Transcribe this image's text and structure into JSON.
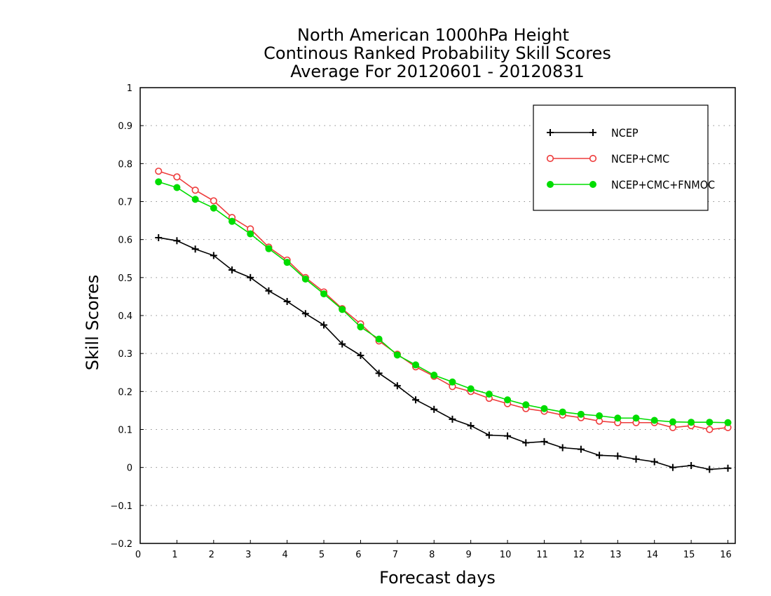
{
  "chart_data": {
    "type": "line",
    "title": [
      "North American 1000hPa Height",
      "Continous Ranked Probability Skill Scores",
      "Average For 20120601 - 20120831"
    ],
    "xlabel": "Forecast days",
    "ylabel": "Skill Scores",
    "xlim": [
      0,
      16.2
    ],
    "ylim": [
      -0.2,
      1
    ],
    "xticks": [
      0,
      1,
      2,
      3,
      4,
      5,
      6,
      7,
      8,
      9,
      10,
      11,
      12,
      13,
      14,
      15,
      16
    ],
    "yticks": [
      -0.2,
      -0.1,
      0,
      0.1,
      0.2,
      0.3,
      0.4,
      0.5,
      0.6,
      0.7,
      0.8,
      0.9,
      1
    ],
    "ytick_labels": [
      "−0.2",
      "−0.1",
      "0",
      "0.1",
      "0.2",
      "0.3",
      "0.4",
      "0.5",
      "0.6",
      "0.7",
      "0.8",
      "0.9",
      "1"
    ],
    "grid": "horizontal dotted",
    "legend_position": "top-right",
    "x": [
      0.5,
      1,
      1.5,
      2,
      2.5,
      3,
      3.5,
      4,
      4.5,
      5,
      5.5,
      6,
      6.5,
      7,
      7.5,
      8,
      8.5,
      9,
      9.5,
      10,
      10.5,
      11,
      11.5,
      12,
      12.5,
      13,
      13.5,
      14,
      14.5,
      15,
      15.5,
      16
    ],
    "series": [
      {
        "name": "NCEP",
        "color": "#000000",
        "marker": "plus",
        "values": [
          0.605,
          0.597,
          0.575,
          0.558,
          0.52,
          0.5,
          0.465,
          0.437,
          0.405,
          0.375,
          0.325,
          0.295,
          0.248,
          0.215,
          0.178,
          0.153,
          0.127,
          0.11,
          0.085,
          0.083,
          0.065,
          0.068,
          0.052,
          0.048,
          0.032,
          0.03,
          0.022,
          0.015,
          0.0,
          0.005,
          -0.005,
          -0.002
        ]
      },
      {
        "name": "NCEP+CMC",
        "color": "#ee3b3b",
        "marker": "open-circle",
        "values": [
          0.78,
          0.765,
          0.73,
          0.702,
          0.658,
          0.628,
          0.58,
          0.546,
          0.5,
          0.462,
          0.418,
          0.378,
          0.333,
          0.298,
          0.265,
          0.24,
          0.213,
          0.2,
          0.182,
          0.168,
          0.155,
          0.148,
          0.138,
          0.131,
          0.122,
          0.118,
          0.118,
          0.118,
          0.105,
          0.11,
          0.1,
          0.105
        ]
      },
      {
        "name": "NCEP+CMC+FNMOC",
        "color": "#00dd00",
        "marker": "filled-circle",
        "values": [
          0.752,
          0.737,
          0.706,
          0.683,
          0.648,
          0.615,
          0.576,
          0.54,
          0.496,
          0.457,
          0.416,
          0.37,
          0.338,
          0.296,
          0.27,
          0.243,
          0.225,
          0.207,
          0.193,
          0.178,
          0.165,
          0.155,
          0.146,
          0.14,
          0.136,
          0.13,
          0.13,
          0.124,
          0.12,
          0.119,
          0.119,
          0.118
        ]
      }
    ]
  }
}
